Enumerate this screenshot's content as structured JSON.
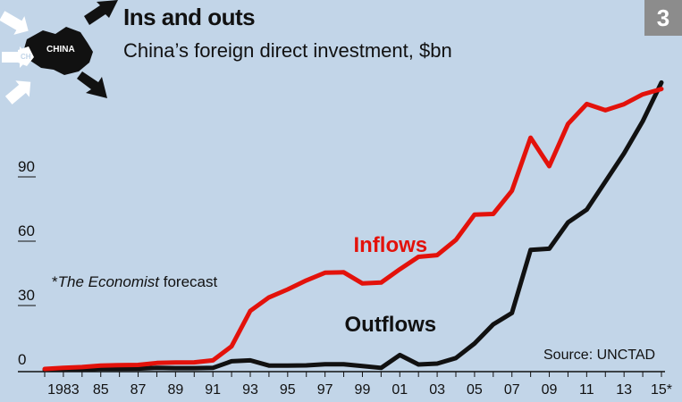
{
  "header": {
    "title": "Ins and outs",
    "subtitle": "China’s foreign direct investment, $bn",
    "badge": "3"
  },
  "logo": {
    "label": "CHINA",
    "label_small": "CH"
  },
  "note": {
    "marker": "*",
    "italic": "The Economist",
    "rest": " forecast"
  },
  "source": "Source: UNCTAD",
  "colors": {
    "background": "#c2d5e8",
    "inflows": "#e3120b",
    "outflows": "#111111"
  },
  "chart_data": {
    "type": "line",
    "title": "Ins and outs",
    "subtitle": "China’s foreign direct investment, $bn",
    "x": [
      1982,
      1983,
      1984,
      1985,
      1986,
      1987,
      1988,
      1989,
      1990,
      1991,
      1992,
      1993,
      1994,
      1995,
      1996,
      1997,
      1998,
      1999,
      2000,
      2001,
      2002,
      2003,
      2004,
      2005,
      2006,
      2007,
      2008,
      2009,
      2010,
      2011,
      2012,
      2013,
      2014,
      2015
    ],
    "xlim": [
      1982,
      2015
    ],
    "ylim": [
      0,
      125
    ],
    "yticks": [
      0,
      30,
      60,
      90
    ],
    "x_tick_labels": [
      {
        "x": 1983,
        "label": "1983"
      },
      {
        "x": 1985,
        "label": "85"
      },
      {
        "x": 1987,
        "label": "87"
      },
      {
        "x": 1989,
        "label": "89"
      },
      {
        "x": 1991,
        "label": "91"
      },
      {
        "x": 1993,
        "label": "93"
      },
      {
        "x": 1995,
        "label": "95"
      },
      {
        "x": 1997,
        "label": "97"
      },
      {
        "x": 1999,
        "label": "99"
      },
      {
        "x": 2001,
        "label": "01"
      },
      {
        "x": 2003,
        "label": "03"
      },
      {
        "x": 2005,
        "label": "05"
      },
      {
        "x": 2007,
        "label": "07"
      },
      {
        "x": 2009,
        "label": "09"
      },
      {
        "x": 2011,
        "label": "11"
      },
      {
        "x": 2013,
        "label": "13"
      },
      {
        "x": 2015,
        "label": "15*"
      }
    ],
    "series": [
      {
        "name": "Inflows",
        "color": "#e3120b",
        "label_at": [
          2000.5,
          55
        ],
        "values": [
          0.4,
          0.9,
          1.3,
          2.0,
          2.2,
          2.3,
          3.2,
          3.4,
          3.5,
          4.4,
          11.0,
          27.5,
          33.8,
          37.5,
          41.7,
          45.3,
          45.5,
          40.3,
          40.7,
          46.9,
          52.7,
          53.5,
          60.6,
          72.4,
          72.7,
          83.5,
          108.3,
          95.0,
          114.7,
          124.0,
          121.1,
          123.9,
          128.5,
          131.0
        ]
      },
      {
        "name": "Outflows",
        "color": "#111111",
        "label_at": [
          2000.5,
          18
        ],
        "values": [
          0.0,
          0.1,
          0.1,
          0.6,
          0.5,
          0.6,
          0.9,
          0.8,
          0.8,
          0.9,
          4.0,
          4.4,
          2.0,
          2.0,
          2.1,
          2.6,
          2.6,
          1.8,
          0.9,
          6.9,
          2.5,
          2.9,
          5.5,
          12.3,
          21.2,
          26.5,
          55.9,
          56.5,
          68.8,
          74.7,
          87.8,
          101.0,
          116.0,
          134.0
        ]
      }
    ]
  }
}
